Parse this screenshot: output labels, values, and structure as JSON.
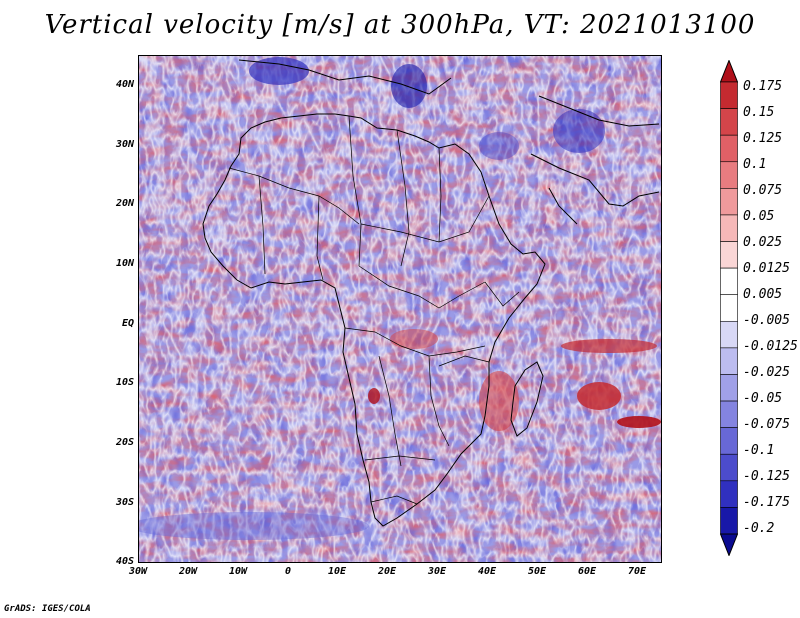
{
  "title": "Vertical velocity [m/s] at 300hPa, VT: 2021013100",
  "credit": "GrADS: IGES/COLA",
  "lat_labels": [
    "40N",
    "30N",
    "20N",
    "10N",
    "EQ",
    "10S",
    "20S",
    "30S",
    "40S"
  ],
  "lon_labels": [
    "30W",
    "20W",
    "10W",
    "0",
    "10E",
    "20E",
    "30E",
    "40E",
    "50E",
    "60E",
    "70E"
  ],
  "colorbar": {
    "labels": [
      "0.175",
      "0.15",
      "0.125",
      "0.1",
      "0.075",
      "0.05",
      "0.025",
      "0.0125",
      "0.005",
      "-0.005",
      "-0.0125",
      "-0.025",
      "-0.05",
      "-0.075",
      "-0.1",
      "-0.125",
      "-0.175",
      "-0.2"
    ],
    "colors": [
      "#b0101a",
      "#c42a30",
      "#d4454a",
      "#e06066",
      "#e87c80",
      "#f09a9c",
      "#f6b8b8",
      "#fad6d6",
      "#ffffff",
      "#ffffff",
      "#d8d8f6",
      "#bcbcf0",
      "#a0a0e8",
      "#8484e0",
      "#6868d6",
      "#4c4ccc",
      "#3030bf",
      "#1818a8",
      "#0a0a90"
    ]
  }
}
